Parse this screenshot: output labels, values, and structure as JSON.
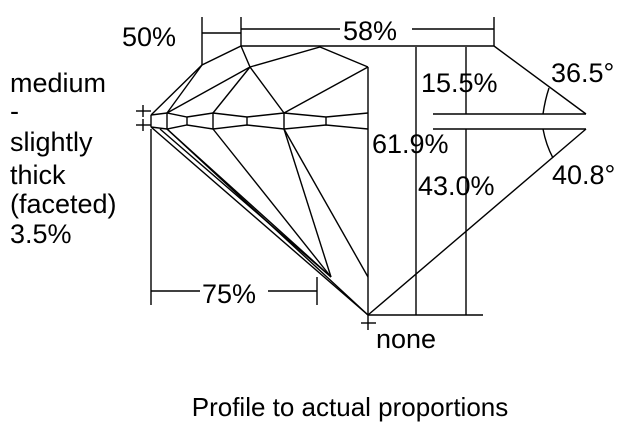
{
  "diagram": {
    "caption": "Profile to actual proportions",
    "crown_height_angle_label": "36.5°",
    "pavilion_angle_label": "40.8°",
    "crown_height": "15.5%",
    "total_depth": "61.9%",
    "pavilion_depth": "43.0%",
    "table": "58%",
    "star_length": "50%",
    "lower_half_length": "75%",
    "culet": "none",
    "girdle": [
      "medium",
      "-",
      "slightly",
      "thick",
      "(faceted)",
      "3.5%"
    ],
    "line_color": "#000000",
    "background_color": "#ffffff"
  }
}
